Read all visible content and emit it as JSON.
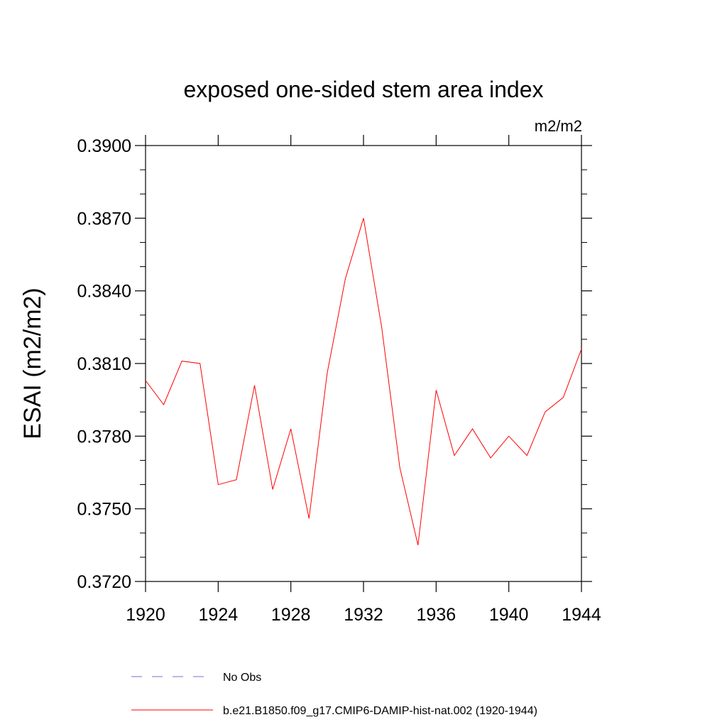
{
  "chart_data": {
    "type": "line",
    "title": "exposed one-sided stem area index",
    "units": "m2/m2",
    "ylabel": "ESAI  (m2/m2)",
    "xlabel": "",
    "xlim": [
      1920,
      1944
    ],
    "ylim": [
      0.372,
      0.39
    ],
    "x_ticks": [
      1920,
      1924,
      1928,
      1932,
      1936,
      1940,
      1944
    ],
    "x_tick_labels": [
      "1920",
      "1924",
      "1928",
      "1932",
      "1936",
      "1940",
      "1944"
    ],
    "y_ticks": [
      0.372,
      0.375,
      0.378,
      0.381,
      0.384,
      0.387,
      0.39
    ],
    "y_tick_labels": [
      "0.3720",
      "0.3750",
      "0.3780",
      "0.3810",
      "0.3840",
      "0.3870",
      "0.3900"
    ],
    "grid": false,
    "legend_position": "bottom",
    "series": [
      {
        "name": "No Obs",
        "color": "#7b6fd0",
        "style": "dashed",
        "x": [],
        "values": []
      },
      {
        "name": "b.e21.B1850.f09_g17.CMIP6-DAMIP-hist-nat.002 (1920-1944)",
        "color": "#ff0000",
        "style": "solid",
        "x": [
          1920,
          1921,
          1922,
          1923,
          1924,
          1925,
          1926,
          1927,
          1928,
          1929,
          1930,
          1931,
          1932,
          1933,
          1934,
          1935,
          1936,
          1937,
          1938,
          1939,
          1940,
          1941,
          1942,
          1943,
          1944
        ],
        "values": [
          0.3803,
          0.3793,
          0.3811,
          0.381,
          0.376,
          0.3762,
          0.3801,
          0.3758,
          0.3783,
          0.3746,
          0.3806,
          0.3845,
          0.387,
          0.3825,
          0.3767,
          0.3735,
          0.3799,
          0.3772,
          0.3783,
          0.3771,
          0.378,
          0.3772,
          0.379,
          0.3796,
          0.3816
        ]
      }
    ]
  }
}
